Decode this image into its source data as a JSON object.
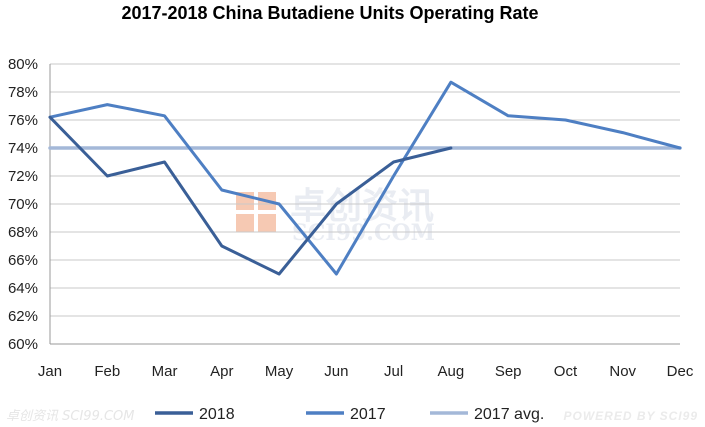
{
  "chart_data": {
    "type": "line",
    "title": "2017-2018 China Butadiene Units Operating Rate",
    "xlabel": "",
    "ylabel": "",
    "categories": [
      "Jan",
      "Feb",
      "Mar",
      "Apr",
      "May",
      "Jun",
      "Jul",
      "Aug",
      "Sep",
      "Oct",
      "Nov",
      "Dec"
    ],
    "ylim": [
      60,
      80
    ],
    "yticks": [
      60,
      62,
      64,
      66,
      68,
      70,
      72,
      74,
      76,
      78,
      80
    ],
    "ytick_labels": [
      "60%",
      "62%",
      "64%",
      "66%",
      "68%",
      "70%",
      "72%",
      "74%",
      "76%",
      "78%",
      "80%"
    ],
    "grid": true,
    "legend_position": "bottom",
    "series": [
      {
        "name": "2018",
        "color": "#3a5f97",
        "values": [
          76.2,
          72.0,
          73.0,
          67.0,
          65.0,
          70.0,
          73.0,
          74.0,
          null,
          null,
          null,
          null
        ]
      },
      {
        "name": "2017",
        "color": "#4e7fc3",
        "values": [
          76.2,
          77.1,
          76.3,
          71.0,
          70.0,
          65.0,
          72.0,
          78.7,
          76.3,
          76.0,
          75.1,
          74.0
        ]
      },
      {
        "name": "2017 avg.",
        "color": "#a4b8d8",
        "values": [
          74,
          74,
          74,
          74,
          74,
          74,
          74,
          74,
          74,
          74,
          74,
          74
        ]
      }
    ]
  },
  "watermark": {
    "cn_text": "卓创资讯",
    "en_text": "SCI99.COM",
    "logo_color": "#f6c9b3"
  },
  "footer": {
    "left_text": "卓创资讯 SCI99.COM",
    "right_text": "POWERED BY SCI99"
  }
}
